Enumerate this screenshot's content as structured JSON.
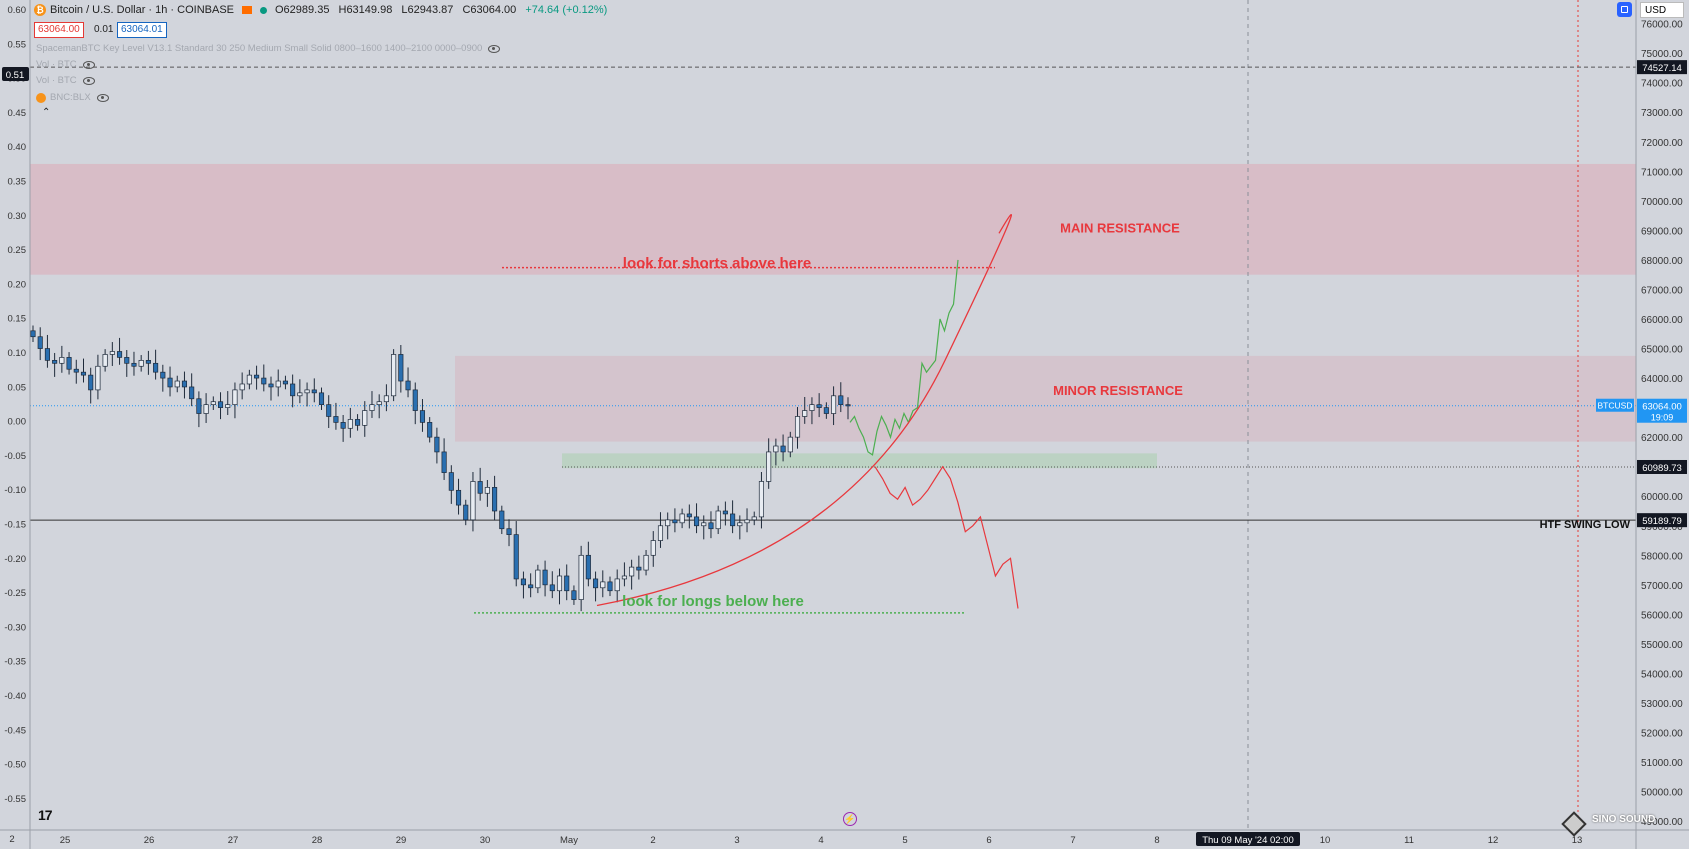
{
  "header": {
    "title": "Bitcoin / U.S. Dollar · 1h · COINBASE",
    "open": "O62989.35",
    "high": "H63149.98",
    "low": "L62943.87",
    "close": "C63064.00",
    "change": "+74.64 (+0.12%)",
    "bid": "63064.00",
    "spread": "0.01",
    "ask": "63064.01",
    "currency": "USD"
  },
  "indicators": [
    {
      "label": "SpacemanBTC Key Level V13.1 Standard 30 250 Medium Small Solid 0800–1600 1400–2100 0000–0900"
    },
    {
      "label": "Vol · BTC"
    },
    {
      "label": "Vol · BTC"
    },
    {
      "label": "BNC:BLX"
    }
  ],
  "colors": {
    "background": "#d2d5dc",
    "main_zone": "#d9b9c3",
    "minor_zone": "#d4bec8",
    "support_zone": "#b9d1c0",
    "red_annotation": "#e8383d",
    "green_annotation": "#4caf50",
    "candle": "#1e2a3a",
    "candle_body": "#2a6fb0",
    "price_label": "#2196f3"
  },
  "chart_data": {
    "type": "candlestick",
    "title": "Bitcoin / U.S. Dollar · 1h · COINBASE",
    "interval": "1h",
    "x_ticks": [
      "25",
      "26",
      "27",
      "28",
      "29",
      "30",
      "May",
      "2",
      "3",
      "4",
      "5",
      "6",
      "7",
      "8",
      "Thu 09 May '24   02:00",
      "10",
      "11",
      "12",
      "13"
    ],
    "y_ticks_right": [
      76000,
      75000,
      74000,
      73000,
      72000,
      71000,
      70000,
      69000,
      68000,
      67000,
      66000,
      65000,
      64000,
      63000,
      62000,
      61000,
      60000,
      59000,
      58000,
      57000,
      56000,
      55000,
      54000,
      53000,
      52000,
      51000,
      50000,
      49000
    ],
    "y_ticks_left": [
      "0.60",
      "0.55",
      "0.50",
      "0.45",
      "0.40",
      "0.35",
      "0.30",
      "0.25",
      "0.20",
      "0.15",
      "0.10",
      "0.05",
      "0.00",
      "-0.05",
      "-0.10",
      "-0.15",
      "-0.20",
      "-0.25",
      "-0.30",
      "-0.35",
      "-0.40",
      "-0.45",
      "-0.50",
      "-0.55"
    ],
    "left_marker": "0.51",
    "left_bottom_label": "2",
    "ylim": [
      48700,
      76800
    ],
    "price_labels": [
      {
        "text": "74527.14",
        "price": 74527.14,
        "style": "dark"
      },
      {
        "text": "BTCUSD",
        "price": 63064,
        "style": "blue-tag"
      },
      {
        "text": "63064.00",
        "sub": "19:09",
        "price": 63064,
        "style": "blue"
      },
      {
        "text": "60989.73",
        "price": 60989.73,
        "style": "dark"
      },
      {
        "text": "59189.79",
        "price": 59189.79,
        "style": "dark"
      }
    ],
    "zones": [
      {
        "name": "MAIN RESISTANCE",
        "from": 67500,
        "to": 71250
      },
      {
        "name": "MINOR RESISTANCE",
        "from": 61850,
        "to": 64750
      },
      {
        "name": "support",
        "from": 60950,
        "to": 61450
      }
    ],
    "annotations": [
      {
        "text": "MAIN RESISTANCE",
        "price": 69100,
        "color": "red"
      },
      {
        "text": "MINOR RESISTANCE",
        "price": 63600,
        "color": "red"
      },
      {
        "text": "look for shorts above here",
        "price": 67900,
        "color": "red"
      },
      {
        "text": "look for longs below here",
        "price": 56450,
        "color": "green"
      },
      {
        "text": "HTF SWING LOW",
        "price": 59100,
        "color": "dark"
      }
    ],
    "levels": [
      {
        "name": "shorts line",
        "price": 67740
      },
      {
        "name": "longs line",
        "price": 56050
      },
      {
        "name": "htf swing low",
        "price": 59190
      },
      {
        "name": "current price",
        "price": 63064
      },
      {
        "name": "74527 line",
        "price": 74527
      },
      {
        "name": "60989 line",
        "price": 60990
      }
    ],
    "candles_close": [
      65400,
      65000,
      64600,
      64500,
      64700,
      64300,
      64200,
      64100,
      63600,
      64400,
      64800,
      64900,
      64700,
      64500,
      64400,
      64600,
      64500,
      64200,
      64000,
      63700,
      63900,
      63700,
      63300,
      62800,
      63100,
      63200,
      63000,
      63100,
      63600,
      63800,
      64100,
      64000,
      63800,
      63700,
      63900,
      63800,
      63400,
      63500,
      63600,
      63500,
      63100,
      62700,
      62500,
      62300,
      62600,
      62400,
      62900,
      63100,
      63200,
      63400,
      64800,
      63900,
      63600,
      62900,
      62500,
      62000,
      61500,
      60800,
      60200,
      59700,
      59200,
      60500,
      60100,
      60300,
      59500,
      58900,
      58700,
      57200,
      57000,
      56900,
      57500,
      57000,
      56800,
      57300,
      56800,
      56500,
      58000,
      57200,
      56900,
      57100,
      56800,
      57200,
      57300,
      57600,
      57500,
      58000,
      58500,
      59000,
      59200,
      59100,
      59400,
      59300,
      59000,
      59100,
      58900,
      59500,
      59400,
      59000,
      59100,
      59200,
      59300,
      60500,
      61500,
      61700,
      61500,
      62000,
      62700,
      62900,
      63100,
      63000,
      62800,
      63400,
      63100,
      63064
    ],
    "projection_bull": [
      62500,
      62700,
      62300,
      62000,
      61500,
      61400,
      62200,
      62700,
      62400,
      62000,
      62600,
      62300,
      62800,
      62500,
      62900,
      63000,
      64500,
      64200,
      64400,
      64600,
      66000,
      65600,
      66200,
      66500,
      68000
    ],
    "projection_bear": [
      61000,
      60600,
      60100,
      59900,
      60300,
      59700,
      59900,
      60200,
      60600,
      61000,
      60600,
      59800,
      58800,
      59000,
      59300,
      58300,
      57300,
      57700,
      57900,
      56200
    ]
  }
}
